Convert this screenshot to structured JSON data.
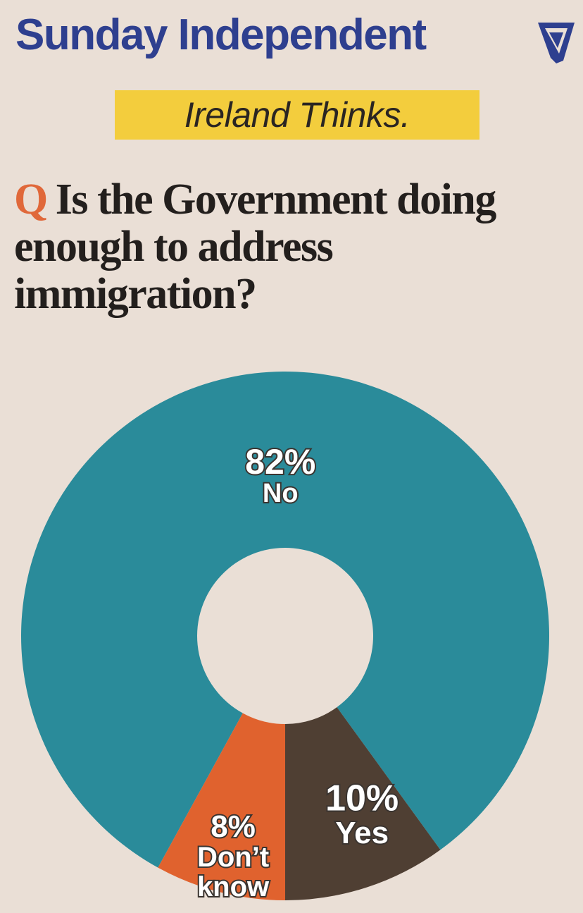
{
  "masthead": {
    "title": "Sunday Independent"
  },
  "tag": {
    "text": "Ireland Thinks."
  },
  "question": {
    "prefix": "Q",
    "text": "Is the Government doing enough to address immigration?"
  },
  "colors": {
    "no": "#2a8b9a",
    "yes": "#4f3f33",
    "dont_know": "#e0622e",
    "tag": "#f3cd3d",
    "masthead": "#2e3f8f"
  },
  "chart_data": {
    "type": "pie",
    "variant": "donut",
    "title": "Is the Government doing enough to address immigration?",
    "categories": [
      "No",
      "Yes",
      "Don't know"
    ],
    "values": [
      82,
      10,
      8
    ],
    "value_labels": [
      "82%",
      "10%",
      "8%"
    ],
    "label_lines": [
      [
        "No"
      ],
      [
        "Yes"
      ],
      [
        "Don’t",
        "know"
      ]
    ]
  }
}
